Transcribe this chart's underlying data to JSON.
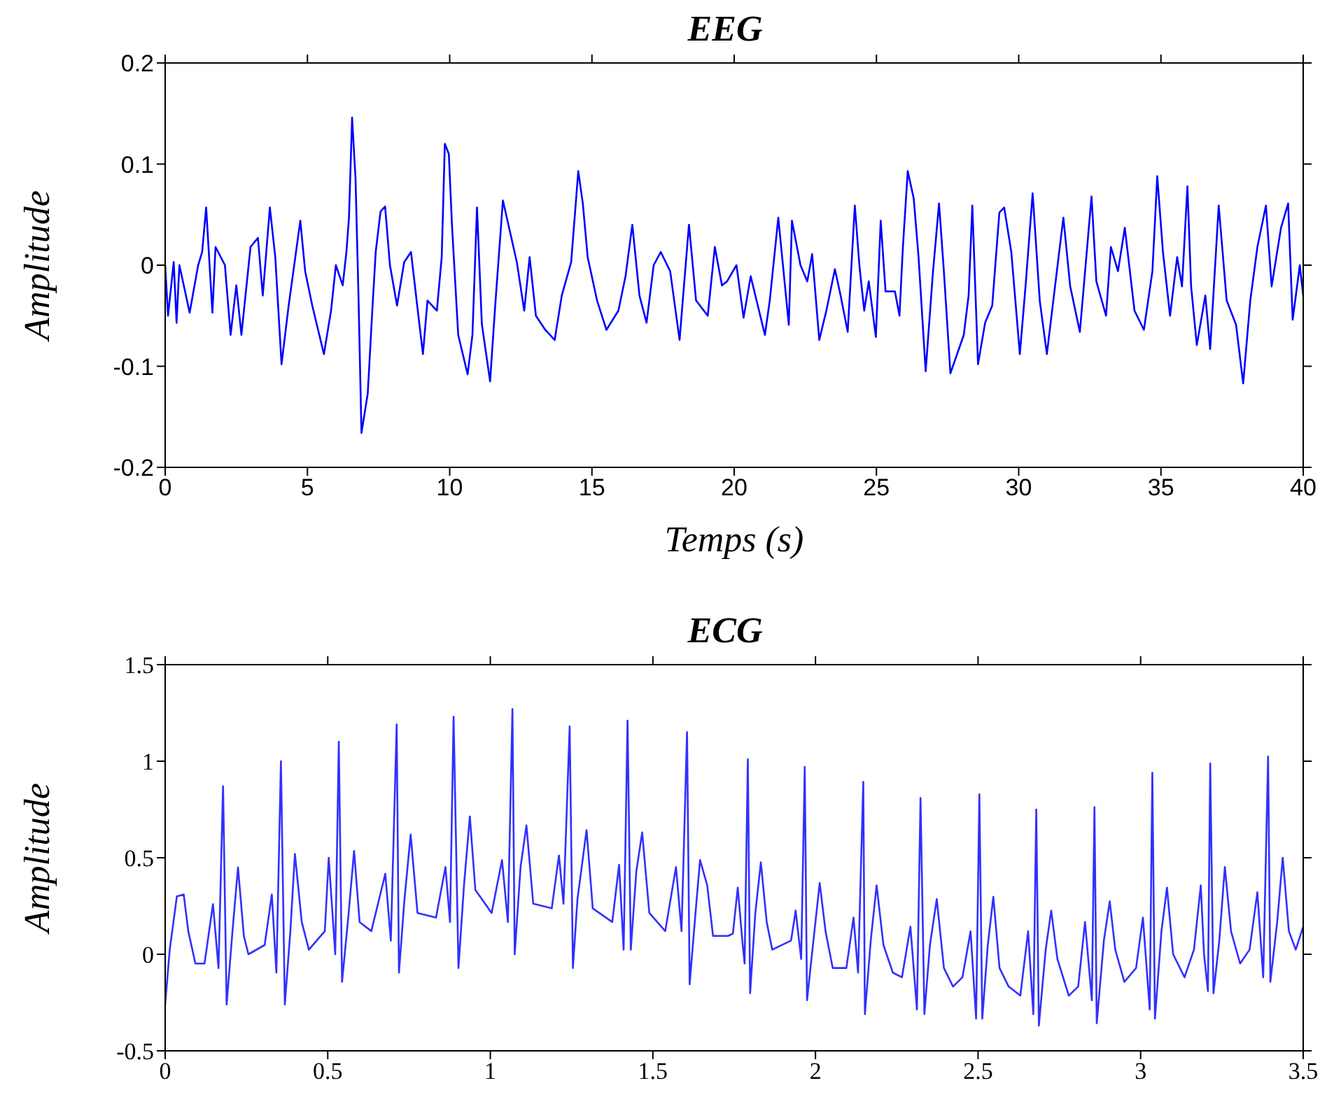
{
  "chart_data": [
    {
      "type": "line",
      "title": "EEG",
      "xlabel": "Temps (s)",
      "ylabel": "Amplitude",
      "xlim": [
        0,
        40
      ],
      "xticks": [
        0,
        5,
        10,
        15,
        20,
        25,
        30,
        35,
        40
      ],
      "ylim": [
        -0.2,
        0.2
      ],
      "yticks": [
        -0.2,
        -0.1,
        0,
        0.1,
        0.2
      ],
      "grid": false,
      "legend": false,
      "series": [
        {
          "color": "#0000ff",
          "x": [
            0,
            0.1,
            0.3,
            0.4,
            0.5,
            0.86,
            1.16,
            1.3,
            1.44,
            1.66,
            1.77,
            2.1,
            2.3,
            2.5,
            2.68,
            3.0,
            3.26,
            3.43,
            3.68,
            3.87,
            4.09,
            4.34,
            4.75,
            4.92,
            5.17,
            5.58,
            5.83,
            6.0,
            6.24,
            6.37,
            6.46,
            6.57,
            6.69,
            6.79,
            6.9,
            7.12,
            7.28,
            7.4,
            7.57,
            7.73,
            7.9,
            8.15,
            8.4,
            8.64,
            8.9,
            9.06,
            9.22,
            9.55,
            9.72,
            9.83,
            9.97,
            10.08,
            10.3,
            10.63,
            10.8,
            10.96,
            11.13,
            11.42,
            11.6,
            11.87,
            12.12,
            12.36,
            12.62,
            12.81,
            13.03,
            13.36,
            13.69,
            13.94,
            14.27,
            14.52,
            14.68,
            14.85,
            15.18,
            15.51,
            15.93,
            16.18,
            16.42,
            16.67,
            16.92,
            17.17,
            17.42,
            17.75,
            18.08,
            18.41,
            18.66,
            19.07,
            19.32,
            19.57,
            19.75,
            20.08,
            20.33,
            20.58,
            21.08,
            21.25,
            21.55,
            21.92,
            22.03,
            22.33,
            22.57,
            22.74,
            22.99,
            23.24,
            23.54,
            23.74,
            23.99,
            24.24,
            24.4,
            24.57,
            24.73,
            24.98,
            25.15,
            25.32,
            25.65,
            25.81,
            25.93,
            26.1,
            26.31,
            26.48,
            26.73,
            26.98,
            27.2,
            27.37,
            27.6,
            28.07,
            28.24,
            28.37,
            28.57,
            28.82,
            29.07,
            29.32,
            29.49,
            29.74,
            30.04,
            30.24,
            30.49,
            30.74,
            30.99,
            31.32,
            31.57,
            31.81,
            32.15,
            32.56,
            32.73,
            33.07,
            33.24,
            33.49,
            33.73,
            34.07,
            34.4,
            34.7,
            34.87,
            35.07,
            35.32,
            35.57,
            35.74,
            35.93,
            36.06,
            36.26,
            36.56,
            36.73,
            37.03,
            37.31,
            37.64,
            37.89,
            38.14,
            38.39,
            38.69,
            38.89,
            39.22,
            39.47,
            39.63,
            39.88,
            40
          ],
          "values": [
            0,
            -0.05,
            0.003,
            -0.057,
            0,
            -0.047,
            0,
            0.013,
            0.057,
            -0.047,
            0.018,
            0,
            -0.069,
            -0.02,
            -0.069,
            0.018,
            0.027,
            -0.03,
            0.057,
            0.008,
            -0.098,
            -0.04,
            0.044,
            -0.006,
            -0.04,
            -0.088,
            -0.045,
            0,
            -0.02,
            0.013,
            0.047,
            0.146,
            0.086,
            -0.025,
            -0.166,
            -0.127,
            -0.045,
            0.013,
            0.053,
            0.058,
            0,
            -0.04,
            0.003,
            0.013,
            -0.05,
            -0.088,
            -0.035,
            -0.045,
            0.008,
            0.12,
            0.11,
            0.04,
            -0.069,
            -0.108,
            -0.069,
            0.057,
            -0.058,
            -0.115,
            -0.04,
            0.064,
            0.033,
            0.003,
            -0.045,
            0.008,
            -0.05,
            -0.064,
            -0.074,
            -0.03,
            0.003,
            0.093,
            0.061,
            0.008,
            -0.035,
            -0.064,
            -0.045,
            -0.011,
            0.04,
            -0.03,
            -0.057,
            0,
            0.013,
            -0.006,
            -0.074,
            0.04,
            -0.035,
            -0.05,
            0.018,
            -0.02,
            -0.016,
            0,
            -0.052,
            -0.011,
            -0.069,
            -0.035,
            0.047,
            -0.059,
            0.044,
            0,
            -0.016,
            0.011,
            -0.074,
            -0.045,
            -0.004,
            -0.03,
            -0.066,
            0.059,
            0,
            -0.045,
            -0.016,
            -0.071,
            0.044,
            -0.026,
            -0.026,
            -0.05,
            0.018,
            0.093,
            0.066,
            0.008,
            -0.105,
            -0.009,
            0.061,
            -0.006,
            -0.107,
            -0.069,
            -0.03,
            0.059,
            -0.098,
            -0.057,
            -0.04,
            0.052,
            0.057,
            0.013,
            -0.088,
            -0.021,
            0.071,
            -0.035,
            -0.088,
            -0.011,
            0.047,
            -0.021,
            -0.066,
            0.068,
            -0.016,
            -0.05,
            0.018,
            -0.006,
            0.037,
            -0.045,
            -0.064,
            -0.006,
            0.088,
            0.013,
            -0.05,
            0.008,
            -0.021,
            0.078,
            -0.021,
            -0.079,
            -0.03,
            -0.083,
            0.059,
            -0.035,
            -0.059,
            -0.117,
            -0.035,
            0.018,
            0.059,
            -0.021,
            0.037,
            0.061,
            -0.054,
            0,
            -0.03
          ]
        }
      ]
    },
    {
      "type": "line",
      "title": "ECG",
      "ylabel": "Amplitude",
      "xlim": [
        0,
        3.5
      ],
      "xticks": [
        0,
        0.5,
        1,
        1.5,
        2,
        2.5,
        3,
        3.5
      ],
      "ylim": [
        -0.5,
        1.5
      ],
      "yticks": [
        -0.5,
        0,
        0.5,
        1,
        1.5
      ],
      "grid": false,
      "legend": false,
      "series": [
        {
          "color": "#3030ff",
          "x": [
            0,
            0.014,
            0.036,
            0.057,
            0.071,
            0.093,
            0.121,
            0.147,
            0.164,
            0.178,
            0.189,
            0.207,
            0.224,
            0.242,
            0.256,
            0.306,
            0.328,
            0.342,
            0.356,
            0.368,
            0.385,
            0.399,
            0.42,
            0.442,
            0.491,
            0.503,
            0.523,
            0.534,
            0.544,
            0.563,
            0.581,
            0.598,
            0.634,
            0.677,
            0.694,
            0.712,
            0.719,
            0.736,
            0.755,
            0.776,
            0.833,
            0.862,
            0.876,
            0.887,
            0.902,
            0.919,
            0.937,
            0.954,
            1.004,
            1.036,
            1.054,
            1.068,
            1.075,
            1.093,
            1.111,
            1.132,
            1.189,
            1.211,
            1.225,
            1.244,
            1.254,
            1.268,
            1.296,
            1.315,
            1.375,
            1.396,
            1.41,
            1.422,
            1.432,
            1.449,
            1.467,
            1.489,
            1.538,
            1.571,
            1.588,
            1.605,
            1.613,
            1.631,
            1.645,
            1.667,
            1.685,
            1.731,
            1.746,
            1.761,
            1.775,
            1.782,
            1.792,
            1.799,
            1.815,
            1.832,
            1.85,
            1.867,
            1.925,
            1.939,
            1.956,
            1.967,
            1.974,
            1.996,
            2.013,
            2.031,
            2.053,
            2.095,
            2.117,
            2.131,
            2.147,
            2.152,
            2.17,
            2.188,
            2.209,
            2.238,
            2.266,
            2.292,
            2.312,
            2.323,
            2.335,
            2.352,
            2.373,
            2.395,
            2.423,
            2.452,
            2.477,
            2.494,
            2.504,
            2.513,
            2.53,
            2.547,
            2.566,
            2.594,
            2.63,
            2.654,
            2.67,
            2.679,
            2.687,
            2.708,
            2.725,
            2.744,
            2.779,
            2.808,
            2.829,
            2.85,
            2.858,
            2.865,
            2.887,
            2.905,
            2.922,
            2.95,
            2.986,
            3.007,
            3.028,
            3.036,
            3.044,
            3.064,
            3.081,
            3.1,
            3.135,
            3.164,
            3.185,
            3.195,
            3.207,
            3.214,
            3.224,
            3.242,
            3.259,
            3.278,
            3.306,
            3.335,
            3.359,
            3.377,
            3.392,
            3.399,
            3.42,
            3.437,
            3.456,
            3.477,
            3.5
          ],
          "values": [
            -0.26,
            0.024,
            0.3,
            0.31,
            0.12,
            -0.048,
            -0.048,
            0.26,
            -0.071,
            0.87,
            -0.26,
            0.12,
            0.45,
            0.095,
            0,
            0.048,
            0.31,
            -0.095,
            1.0,
            -0.26,
            0.12,
            0.52,
            0.167,
            0.024,
            0.12,
            0.5,
            0,
            1.1,
            -0.143,
            0.19,
            0.535,
            0.167,
            0.12,
            0.417,
            0.071,
            1.19,
            -0.095,
            0.286,
            0.62,
            0.214,
            0.19,
            0.452,
            0.167,
            1.23,
            -0.071,
            0.357,
            0.714,
            0.333,
            0.214,
            0.488,
            0.167,
            1.27,
            0,
            0.452,
            0.667,
            0.262,
            0.238,
            0.512,
            0.262,
            1.18,
            -0.071,
            0.286,
            0.643,
            0.238,
            0.167,
            0.464,
            0.024,
            1.21,
            0.024,
            0.429,
            0.631,
            0.214,
            0.12,
            0.452,
            0.12,
            1.15,
            -0.155,
            0.214,
            0.488,
            0.357,
            0.095,
            0.095,
            0.107,
            0.345,
            0.071,
            -0.048,
            1.01,
            -0.202,
            0.214,
            0.476,
            0.167,
            0.024,
            0.071,
            0.226,
            -0.024,
            0.971,
            -0.238,
            0.107,
            0.369,
            0.119,
            -0.071,
            -0.071,
            0.19,
            -0.095,
            0.893,
            -0.31,
            0.071,
            0.357,
            0.048,
            -0.095,
            -0.119,
            0.143,
            -0.286,
            0.81,
            -0.31,
            0.048,
            0.286,
            -0.071,
            -0.167,
            -0.119,
            0.119,
            -0.333,
            0.829,
            -0.333,
            0.048,
            0.298,
            -0.071,
            -0.167,
            -0.214,
            0.119,
            -0.31,
            0.75,
            -0.369,
            0.024,
            0.226,
            -0.024,
            -0.214,
            -0.167,
            0.167,
            -0.238,
            0.762,
            -0.357,
            0.071,
            0.274,
            0.024,
            -0.143,
            -0.071,
            0.19,
            -0.286,
            0.94,
            -0.333,
            0.119,
            0.345,
            0,
            -0.119,
            0.024,
            0.357,
            0,
            -0.19,
            0.988,
            -0.202,
            0.071,
            0.452,
            0.119,
            -0.048,
            0.024,
            0.321,
            -0.119,
            1.024,
            -0.143,
            0.167,
            0.5,
            0.119,
            0.024,
            0.143
          ]
        }
      ]
    }
  ]
}
